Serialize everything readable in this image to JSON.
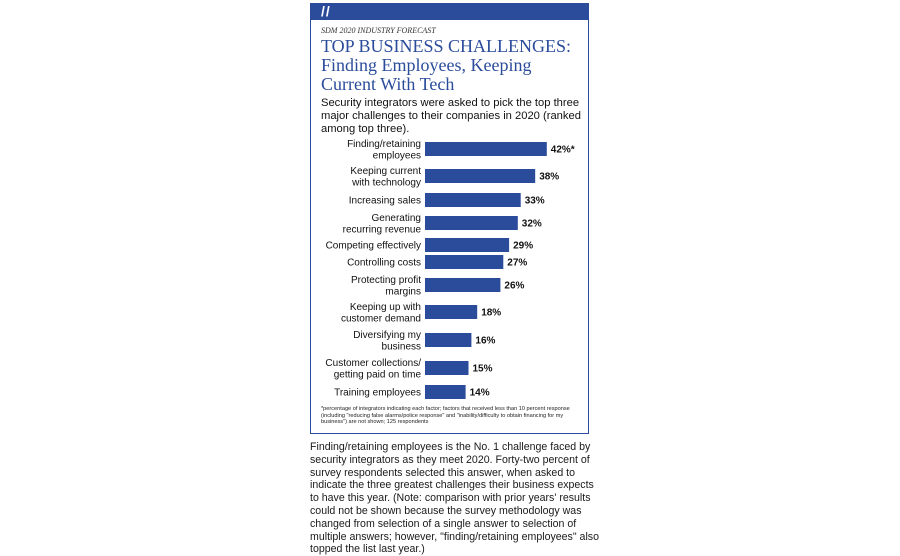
{
  "kicker": "SDM 2020 INDUSTRY FORECAST",
  "title_line1": "TOP BUSINESS CHALLENGES:",
  "title_line2": "Finding Employees, Keeping Current With Tech",
  "subtitle": "Security integrators were asked to pick the top three major challenges to their companies in 2020 (ranked among top three).",
  "footnote": "*percentage of integrators indicating each factor; factors that received less than 10 percent response (including \"reducing false alarms/police response\" and \"inability/difficulty to obtain financing for my business\") are not shown; 125 respondents",
  "body_text": "Finding/retaining employees is the No. 1 challenge faced by security integrators as they meet 2020. Forty-two percent of survey respondents selected this answer, when asked to indicate the three greatest challenges their business expects to have this year. (Note: comparison with prior years' results could not be shown because the survey methodology was changed from selection of a single answer to selection of multiple answers; however, \"finding/retaining employees\" also topped the list last year.)",
  "colors": {
    "accent": "#2b4c9b",
    "bar": "#2b4c9b"
  },
  "chart_data": {
    "type": "bar",
    "orientation": "horizontal",
    "categories": [
      [
        "Finding/retaining",
        "employees"
      ],
      [
        "Keeping current",
        "with technology"
      ],
      [
        "Increasing sales"
      ],
      [
        "Generating",
        "recurring revenue"
      ],
      [
        "Competing effectively"
      ],
      [
        "Controlling costs"
      ],
      [
        "Protecting profit",
        "margins"
      ],
      [
        "Keeping up with",
        "customer demand"
      ],
      [
        "Diversifying my",
        "business"
      ],
      [
        "Customer collections/",
        "getting paid on time"
      ],
      [
        "Training employees"
      ]
    ],
    "values": [
      42,
      38,
      33,
      32,
      29,
      27,
      26,
      18,
      16,
      15,
      14
    ],
    "data_labels": [
      "42%*",
      "38%",
      "33%",
      "32%",
      "29%",
      "27%",
      "26%",
      "18%",
      "16%",
      "15%",
      "14%"
    ],
    "title": "TOP BUSINESS CHALLENGES: Finding Employees, Keeping Current With Tech",
    "xlabel": "",
    "ylabel": "",
    "xlim": [
      0,
      50
    ],
    "grid": false,
    "legend": "none"
  }
}
